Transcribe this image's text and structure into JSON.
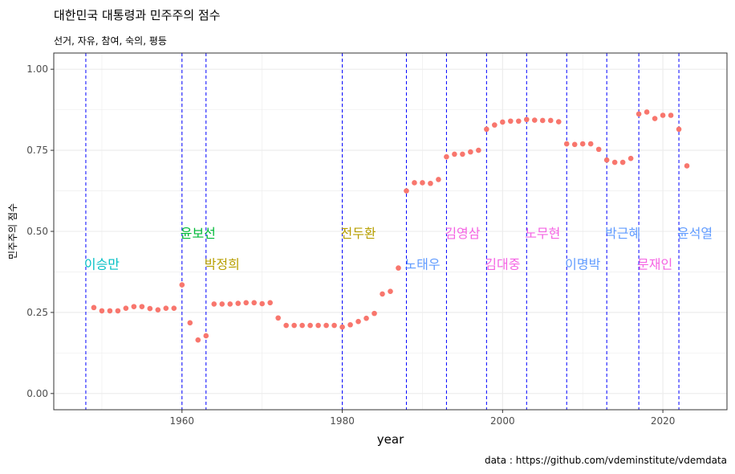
{
  "title": "대한민국 대통령과 민주주의 점수",
  "subtitle": "선거, 자유, 참여, 숙의, 평등",
  "caption": "data : https://github.com/vdeminstitute/vdemdata",
  "colors": {
    "point": "#f8766d",
    "vline": "#0000ff",
    "grid": "#ebebeb",
    "panel_border": "#333333"
  },
  "chart_data": {
    "type": "scatter",
    "xlabel": "year",
    "ylabel": "민주주의 점수",
    "xlim": [
      1944,
      2028
    ],
    "ylim": [
      -0.05,
      1.05
    ],
    "x_ticks": [
      1960,
      1980,
      2000,
      2020
    ],
    "y_ticks": [
      0.0,
      0.25,
      0.5,
      0.75,
      1.0
    ],
    "y_tick_labels": [
      "0.00",
      "0.25",
      "0.50",
      "0.75",
      "1.00"
    ],
    "grid": true,
    "points": [
      {
        "x": 1949,
        "y": 0.265
      },
      {
        "x": 1950,
        "y": 0.255
      },
      {
        "x": 1951,
        "y": 0.255
      },
      {
        "x": 1952,
        "y": 0.255
      },
      {
        "x": 1953,
        "y": 0.263
      },
      {
        "x": 1954,
        "y": 0.268
      },
      {
        "x": 1955,
        "y": 0.268
      },
      {
        "x": 1956,
        "y": 0.262
      },
      {
        "x": 1957,
        "y": 0.258
      },
      {
        "x": 1958,
        "y": 0.263
      },
      {
        "x": 1959,
        "y": 0.263
      },
      {
        "x": 1960,
        "y": 0.335
      },
      {
        "x": 1961,
        "y": 0.218
      },
      {
        "x": 1962,
        "y": 0.165
      },
      {
        "x": 1963,
        "y": 0.178
      },
      {
        "x": 1964,
        "y": 0.276
      },
      {
        "x": 1965,
        "y": 0.276
      },
      {
        "x": 1966,
        "y": 0.276
      },
      {
        "x": 1967,
        "y": 0.278
      },
      {
        "x": 1968,
        "y": 0.28
      },
      {
        "x": 1969,
        "y": 0.28
      },
      {
        "x": 1970,
        "y": 0.277
      },
      {
        "x": 1971,
        "y": 0.28
      },
      {
        "x": 1972,
        "y": 0.233
      },
      {
        "x": 1973,
        "y": 0.21
      },
      {
        "x": 1974,
        "y": 0.21
      },
      {
        "x": 1975,
        "y": 0.21
      },
      {
        "x": 1976,
        "y": 0.21
      },
      {
        "x": 1977,
        "y": 0.21
      },
      {
        "x": 1978,
        "y": 0.21
      },
      {
        "x": 1979,
        "y": 0.21
      },
      {
        "x": 1980,
        "y": 0.205
      },
      {
        "x": 1981,
        "y": 0.212
      },
      {
        "x": 1982,
        "y": 0.222
      },
      {
        "x": 1983,
        "y": 0.232
      },
      {
        "x": 1984,
        "y": 0.247
      },
      {
        "x": 1985,
        "y": 0.307
      },
      {
        "x": 1986,
        "y": 0.315
      },
      {
        "x": 1987,
        "y": 0.387
      },
      {
        "x": 1988,
        "y": 0.625
      },
      {
        "x": 1989,
        "y": 0.65
      },
      {
        "x": 1990,
        "y": 0.65
      },
      {
        "x": 1991,
        "y": 0.648
      },
      {
        "x": 1992,
        "y": 0.66
      },
      {
        "x": 1993,
        "y": 0.73
      },
      {
        "x": 1994,
        "y": 0.738
      },
      {
        "x": 1995,
        "y": 0.738
      },
      {
        "x": 1996,
        "y": 0.745
      },
      {
        "x": 1997,
        "y": 0.75
      },
      {
        "x": 1998,
        "y": 0.815
      },
      {
        "x": 1999,
        "y": 0.828
      },
      {
        "x": 2000,
        "y": 0.837
      },
      {
        "x": 2001,
        "y": 0.84
      },
      {
        "x": 2002,
        "y": 0.84
      },
      {
        "x": 2003,
        "y": 0.845
      },
      {
        "x": 2004,
        "y": 0.843
      },
      {
        "x": 2005,
        "y": 0.842
      },
      {
        "x": 2006,
        "y": 0.842
      },
      {
        "x": 2007,
        "y": 0.838
      },
      {
        "x": 2008,
        "y": 0.77
      },
      {
        "x": 2009,
        "y": 0.768
      },
      {
        "x": 2010,
        "y": 0.77
      },
      {
        "x": 2011,
        "y": 0.77
      },
      {
        "x": 2012,
        "y": 0.753
      },
      {
        "x": 2013,
        "y": 0.72
      },
      {
        "x": 2014,
        "y": 0.713
      },
      {
        "x": 2015,
        "y": 0.713
      },
      {
        "x": 2016,
        "y": 0.725
      },
      {
        "x": 2017,
        "y": 0.862
      },
      {
        "x": 2018,
        "y": 0.868
      },
      {
        "x": 2019,
        "y": 0.848
      },
      {
        "x": 2020,
        "y": 0.858
      },
      {
        "x": 2021,
        "y": 0.858
      },
      {
        "x": 2022,
        "y": 0.815
      },
      {
        "x": 2023,
        "y": 0.702
      }
    ],
    "vlines": [
      1948,
      1960,
      1963,
      1980,
      1988,
      1993,
      1998,
      2003,
      2008,
      2013,
      2017,
      2022
    ],
    "annotations": [
      {
        "text": "이승만",
        "x": 1948,
        "y": 0.4,
        "color": "#00bfc4"
      },
      {
        "text": "윤보선",
        "x": 1960,
        "y": 0.495,
        "color": "#00ba38"
      },
      {
        "text": "박정희",
        "x": 1963,
        "y": 0.4,
        "color": "#b79f00"
      },
      {
        "text": "전두환",
        "x": 1980,
        "y": 0.495,
        "color": "#b79f00"
      },
      {
        "text": "노태우",
        "x": 1988,
        "y": 0.4,
        "color": "#619cff"
      },
      {
        "text": "김영삼",
        "x": 1993,
        "y": 0.495,
        "color": "#f564e3"
      },
      {
        "text": "김대중",
        "x": 1998,
        "y": 0.4,
        "color": "#f564e3"
      },
      {
        "text": "노무현",
        "x": 2003,
        "y": 0.495,
        "color": "#f564e3"
      },
      {
        "text": "이명박",
        "x": 2008,
        "y": 0.4,
        "color": "#619cff"
      },
      {
        "text": "박근혜",
        "x": 2013,
        "y": 0.495,
        "color": "#619cff"
      },
      {
        "text": "문재인",
        "x": 2017,
        "y": 0.4,
        "color": "#f564e3"
      },
      {
        "text": "윤석열",
        "x": 2022,
        "y": 0.495,
        "color": "#619cff"
      }
    ]
  }
}
